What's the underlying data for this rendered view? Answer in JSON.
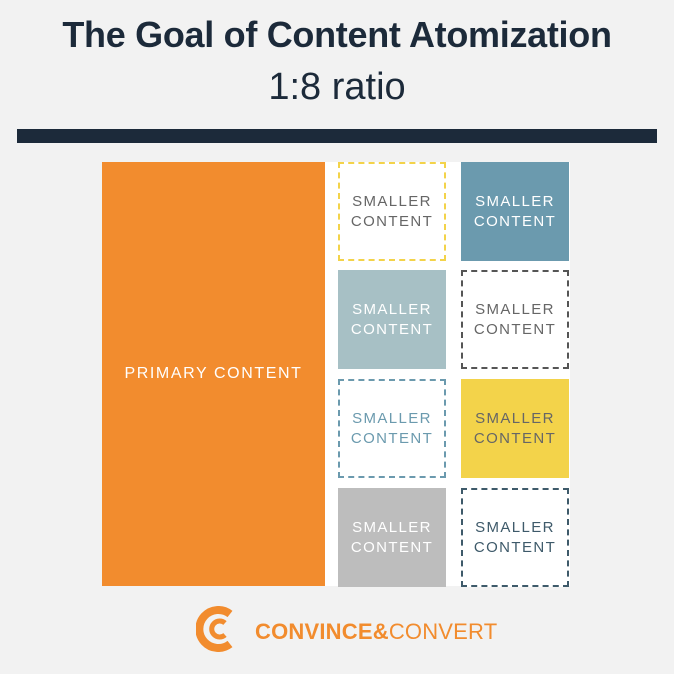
{
  "header": {
    "title": "The Goal of Content Atomization",
    "subtitle": "1:8 ratio"
  },
  "diagram": {
    "primary": {
      "label": "PRIMARY CONTENT",
      "color": "#f28c2e"
    },
    "cells": [
      {
        "label": "SMALLER CONTENT",
        "style": "dashed",
        "fill": "#ffffff",
        "text_color": "#666666",
        "border_color": "#f3d34a"
      },
      {
        "label": "SMALLER CONTENT",
        "style": "solid",
        "fill": "#6b9aae",
        "text_color": "#ffffff",
        "border_color": ""
      },
      {
        "label": "SMALLER CONTENT",
        "style": "solid",
        "fill": "#a7c0c5",
        "text_color": "#ffffff",
        "border_color": ""
      },
      {
        "label": "SMALLER CONTENT",
        "style": "dashed",
        "fill": "#ffffff",
        "text_color": "#666666",
        "border_color": "#555555"
      },
      {
        "label": "SMALLER CONTENT",
        "style": "dashed",
        "fill": "#ffffff",
        "text_color": "#6b9aae",
        "border_color": "#6b9aae"
      },
      {
        "label": "SMALLER CONTENT",
        "style": "solid",
        "fill": "#f3d34a",
        "text_color": "#666666",
        "border_color": ""
      },
      {
        "label": "SMALLER CONTENT",
        "style": "solid",
        "fill": "#bdbdbd",
        "text_color": "#ffffff",
        "border_color": ""
      },
      {
        "label": "SMALLER CONTENT",
        "style": "dashed",
        "fill": "#ffffff",
        "text_color": "#3e5a6a",
        "border_color": "#3e5a6a"
      }
    ]
  },
  "footer": {
    "logo_icon": "convince-convert-logo-icon",
    "brand_bold": "CONVINCE&",
    "brand_regular": "CONVERT",
    "brand_color": "#f28c2e"
  }
}
